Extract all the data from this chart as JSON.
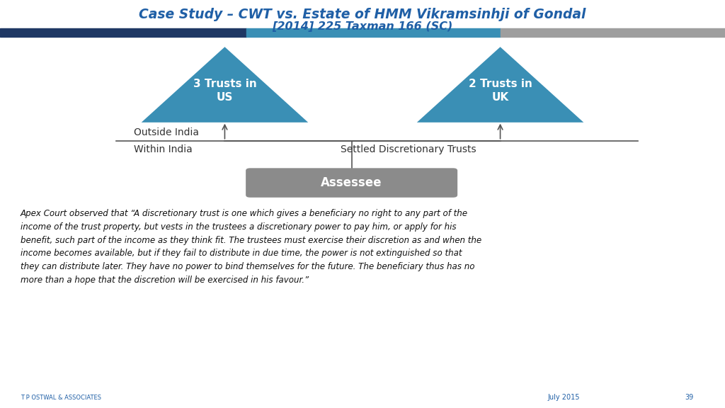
{
  "title_line1": "Case Study – CWT vs. Estate of HMM Vikramsinhji of Gondal",
  "title_line2": "[2014] 225 Taxman 166 (SC)",
  "title_color": "#1F5FA6",
  "bar_colors": [
    "#1F3864",
    "#3A8FB5",
    "#9E9E9E"
  ],
  "triangle_color": "#3A8FB5",
  "assessee_box_color": "#8B8B8B",
  "trust_us_label": "3 Trusts in\nUS",
  "trust_uk_label": "2 Trusts in\nUK",
  "assessee_label": "Assessee",
  "outside_india_label": "Outside India",
  "within_india_label": "Within India",
  "settled_label": "Settled Discretionary Trusts",
  "body_text": "Apex Court observed that “A discretionary trust is one which gives a beneficiary no right to any part of the\nincome of the trust property, but vests in the trustees a discretionary power to pay him, or apply for his\nbenefit, such part of the income as they think fit. The trustees must exercise their discretion as and when the\nincome becomes available, but if they fail to distribute in due time, the power is not extinguished so that\nthey can distribute later. They have no power to bind themselves for the future. The beneficiary thus has no\nmore than a hope that the discretion will be exercised in his favour.”",
  "footer_firm": "T P OSTWAL & ASSOCIATES",
  "footer_date": "July 2015",
  "footer_page": "39",
  "bg_color": "#FFFFFF",
  "arrow_color": "#555555",
  "line_color": "#555555",
  "text_color": "#333333"
}
